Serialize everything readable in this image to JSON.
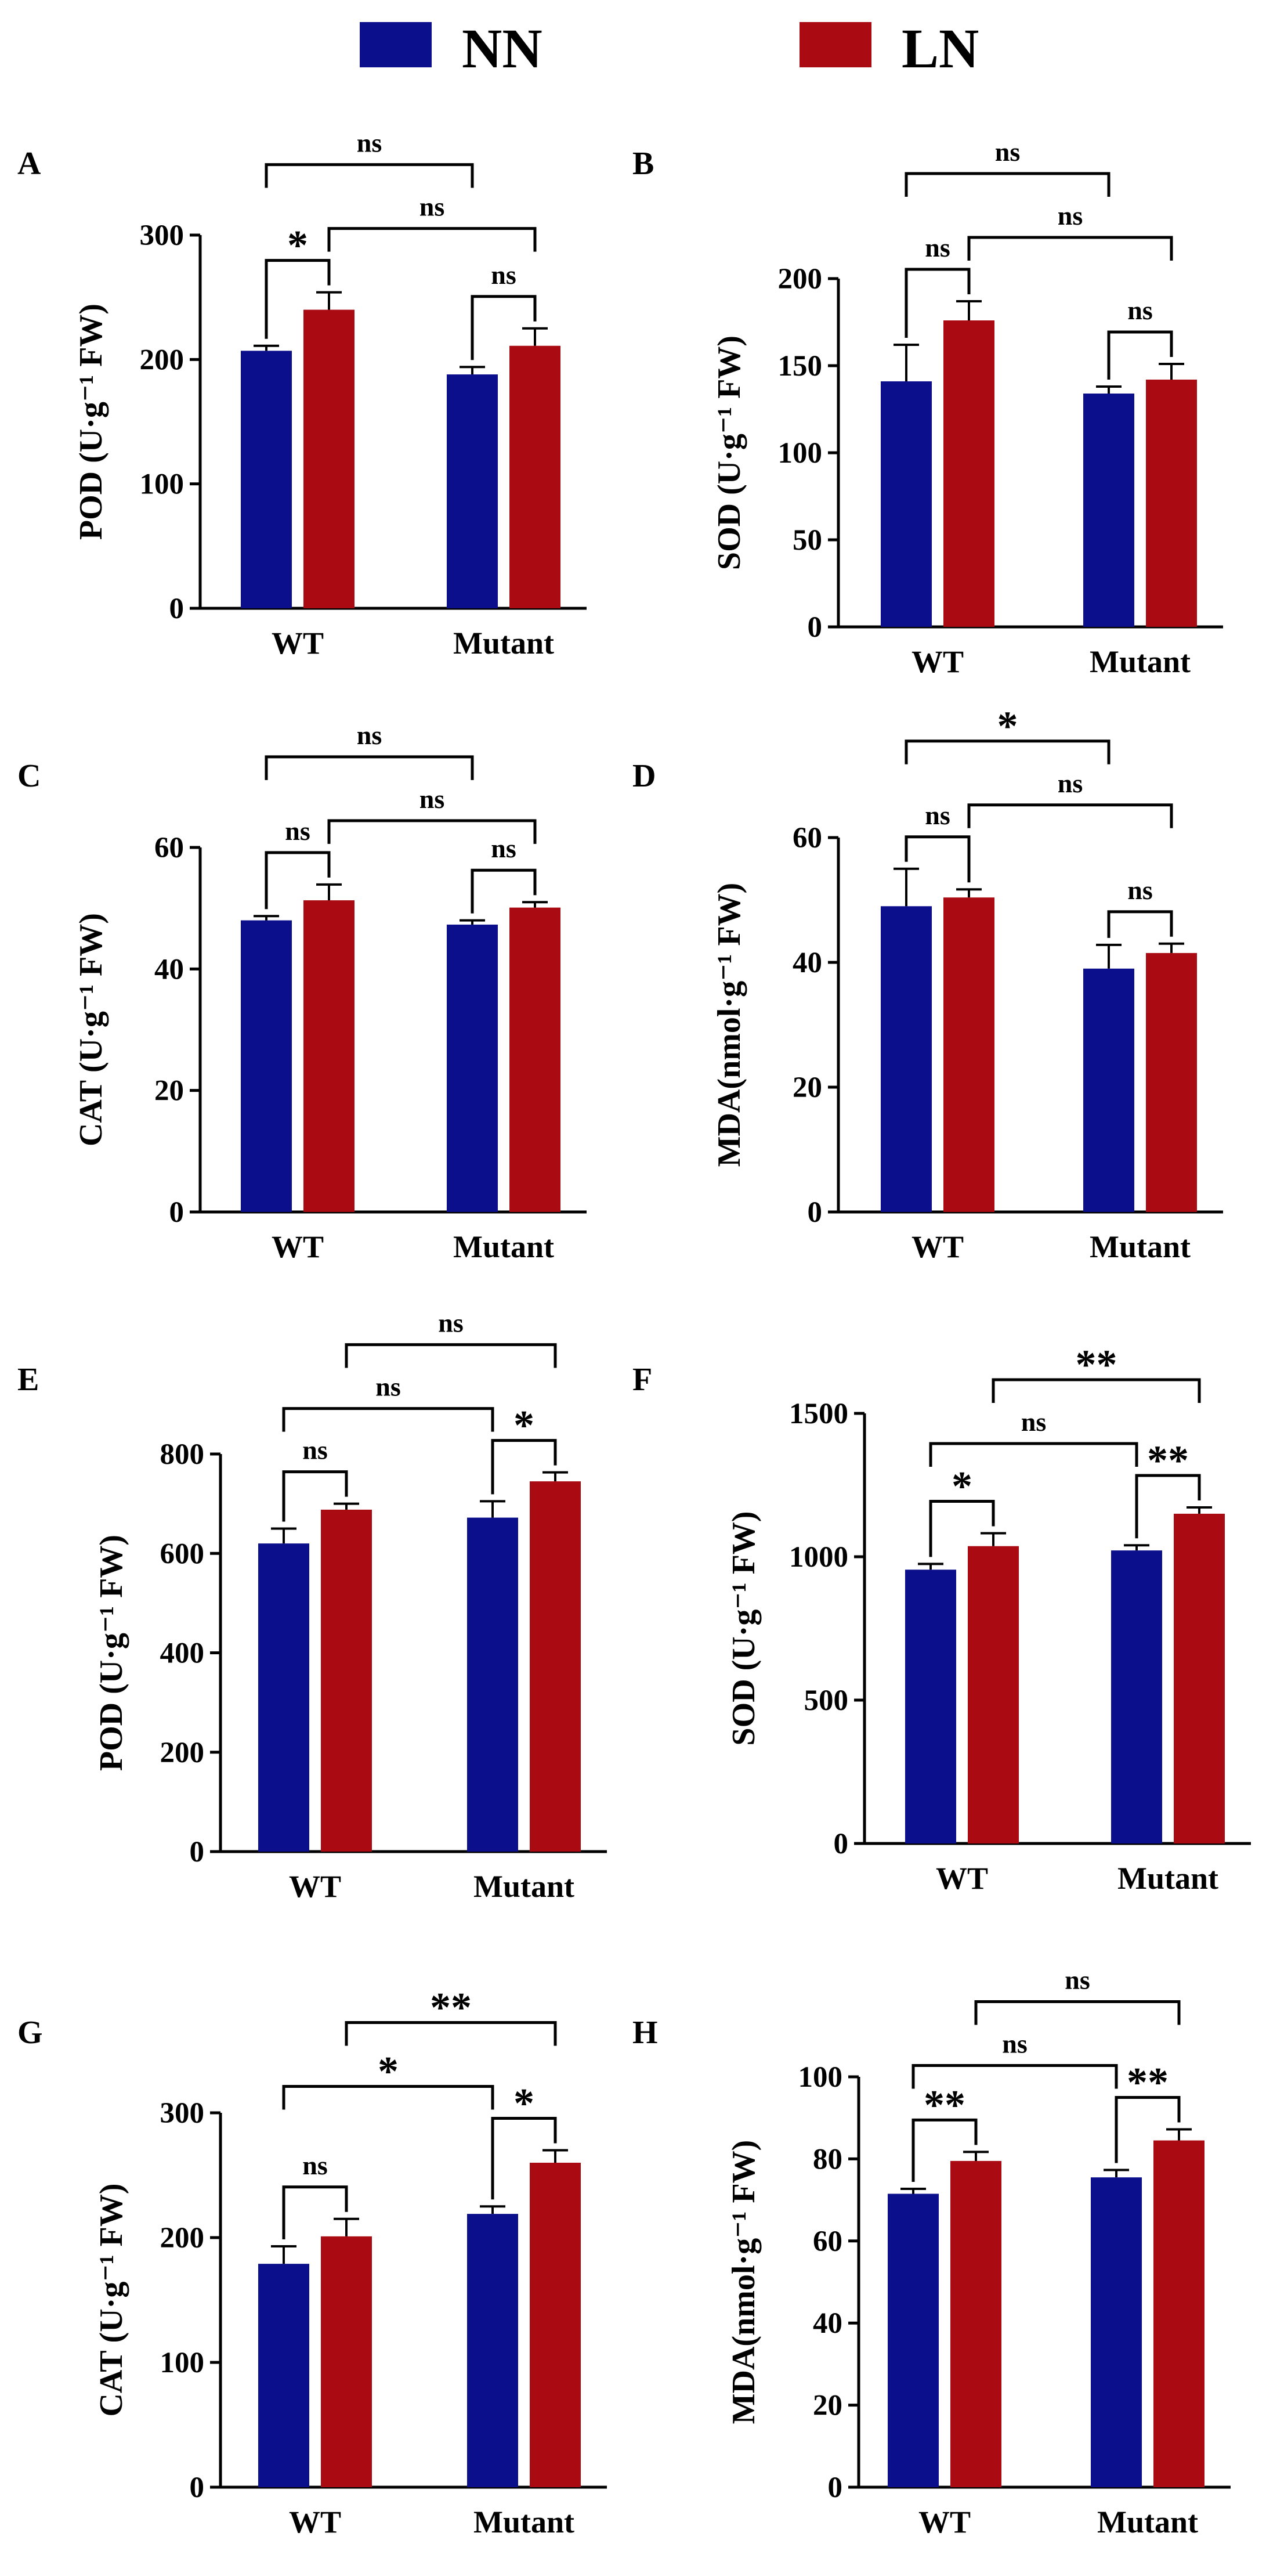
{
  "legend": [
    {
      "name": "NN",
      "color": "#0b0f8c"
    },
    {
      "name": "LN",
      "color": "#aa0b12"
    }
  ],
  "chart_data": [
    {
      "panel": "A",
      "type": "bar",
      "ylabel": "POD (U·g⁻¹ FW)",
      "ylim": [
        0,
        300
      ],
      "yticks": [
        "0",
        "100",
        "200",
        "300"
      ],
      "categories": [
        "WT",
        "Mutant"
      ],
      "series": [
        {
          "name": "NN",
          "values": [
            207,
            188
          ],
          "errors": [
            4,
            6
          ]
        },
        {
          "name": "LN",
          "values": [
            240,
            211
          ],
          "errors": [
            14,
            14
          ]
        }
      ],
      "significance": [
        {
          "pair": "WT NN vs WT LN",
          "label": "*"
        },
        {
          "pair": "Mutant NN vs Mutant LN",
          "label": "ns"
        },
        {
          "pair": "WT LN vs Mutant LN",
          "label": "ns"
        },
        {
          "pair": "WT NN vs Mutant NN",
          "label": "ns"
        }
      ]
    },
    {
      "panel": "B",
      "type": "bar",
      "ylabel": "SOD (U·g⁻¹ FW)",
      "ylim": [
        0,
        200
      ],
      "yticks": [
        "0",
        "50",
        "100",
        "150",
        "200"
      ],
      "categories": [
        "WT",
        "Mutant"
      ],
      "series": [
        {
          "name": "NN",
          "values": [
            141,
            134
          ],
          "errors": [
            21,
            4
          ]
        },
        {
          "name": "LN",
          "values": [
            176,
            142
          ],
          "errors": [
            11,
            9
          ]
        }
      ],
      "significance": [
        {
          "pair": "WT NN vs WT LN",
          "label": "ns"
        },
        {
          "pair": "Mutant NN vs Mutant LN",
          "label": "ns"
        },
        {
          "pair": "WT LN vs Mutant LN",
          "label": "ns"
        },
        {
          "pair": "WT NN vs Mutant NN",
          "label": "ns"
        }
      ]
    },
    {
      "panel": "C",
      "type": "bar",
      "ylabel": "CAT (U·g⁻¹ FW)",
      "ylim": [
        0,
        60
      ],
      "yticks": [
        "0",
        "20",
        "40",
        "60"
      ],
      "categories": [
        "WT",
        "Mutant"
      ],
      "series": [
        {
          "name": "NN",
          "values": [
            48,
            47.3
          ],
          "errors": [
            0.7,
            0.7
          ]
        },
        {
          "name": "LN",
          "values": [
            51.3,
            50.1
          ],
          "errors": [
            2.6,
            0.9
          ]
        }
      ],
      "significance": [
        {
          "pair": "WT NN vs WT LN",
          "label": "ns"
        },
        {
          "pair": "Mutant NN vs Mutant LN",
          "label": "ns"
        },
        {
          "pair": "WT LN vs Mutant LN",
          "label": "ns"
        },
        {
          "pair": "WT NN vs Mutant NN",
          "label": "ns"
        }
      ]
    },
    {
      "panel": "D",
      "type": "bar",
      "ylabel": "MDA(nmol·g⁻¹ FW)",
      "ylim": [
        0,
        60
      ],
      "yticks": [
        "0",
        "20",
        "40",
        "60"
      ],
      "categories": [
        "WT",
        "Mutant"
      ],
      "series": [
        {
          "name": "NN",
          "values": [
            49,
            39
          ],
          "errors": [
            6,
            3.8
          ]
        },
        {
          "name": "LN",
          "values": [
            50.4,
            41.5
          ],
          "errors": [
            1.3,
            1.5
          ]
        }
      ],
      "significance": [
        {
          "pair": "WT NN vs WT LN",
          "label": "ns"
        },
        {
          "pair": "Mutant NN vs Mutant LN",
          "label": "ns"
        },
        {
          "pair": "WT LN vs Mutant LN",
          "label": "ns"
        },
        {
          "pair": "WT NN vs Mutant NN",
          "label": "*"
        }
      ]
    },
    {
      "panel": "E",
      "type": "bar",
      "ylabel": "POD (U·g⁻¹ FW)",
      "ylim": [
        0,
        800
      ],
      "yticks": [
        "0",
        "200",
        "400",
        "600",
        "800"
      ],
      "categories": [
        "WT",
        "Mutant"
      ],
      "series": [
        {
          "name": "NN",
          "values": [
            620,
            672
          ],
          "errors": [
            30,
            33
          ]
        },
        {
          "name": "LN",
          "values": [
            688,
            745
          ],
          "errors": [
            12,
            18
          ]
        }
      ],
      "significance": [
        {
          "pair": "WT NN vs WT LN",
          "label": "ns"
        },
        {
          "pair": "Mutant NN vs Mutant LN",
          "label": "*"
        },
        {
          "pair": "WT NN vs Mutant NN",
          "label": "ns"
        },
        {
          "pair": "WT LN vs Mutant LN",
          "label": "ns"
        }
      ]
    },
    {
      "panel": "F",
      "type": "bar",
      "ylabel": "SOD (U·g⁻¹ FW)",
      "ylim": [
        0,
        1500
      ],
      "yticks": [
        "0",
        "500",
        "1000",
        "1500"
      ],
      "categories": [
        "WT",
        "Mutant"
      ],
      "series": [
        {
          "name": "NN",
          "values": [
            955,
            1022
          ],
          "errors": [
            20,
            18
          ]
        },
        {
          "name": "LN",
          "values": [
            1037,
            1150
          ],
          "errors": [
            45,
            22
          ]
        }
      ],
      "significance": [
        {
          "pair": "WT NN vs WT LN",
          "label": "*"
        },
        {
          "pair": "Mutant NN vs Mutant LN",
          "label": "**"
        },
        {
          "pair": "WT NN vs Mutant NN",
          "label": "ns"
        },
        {
          "pair": "WT LN vs Mutant LN",
          "label": "**"
        }
      ]
    },
    {
      "panel": "G",
      "type": "bar",
      "ylabel": "CAT (U·g⁻¹ FW)",
      "ylim": [
        0,
        300
      ],
      "yticks": [
        "0",
        "100",
        "200",
        "300"
      ],
      "categories": [
        "WT",
        "Mutant"
      ],
      "series": [
        {
          "name": "NN",
          "values": [
            179,
            219
          ],
          "errors": [
            14,
            6
          ]
        },
        {
          "name": "LN",
          "values": [
            201,
            260
          ],
          "errors": [
            14,
            10
          ]
        }
      ],
      "significance": [
        {
          "pair": "WT NN vs WT LN",
          "label": "ns"
        },
        {
          "pair": "Mutant NN vs Mutant LN",
          "label": "*"
        },
        {
          "pair": "WT NN vs Mutant NN",
          "label": "*"
        },
        {
          "pair": "WT LN vs Mutant LN",
          "label": "**"
        }
      ]
    },
    {
      "panel": "H",
      "type": "bar",
      "ylabel": "MDA(nmol·g⁻¹ FW)",
      "ylim": [
        0,
        100
      ],
      "yticks": [
        "0",
        "20",
        "40",
        "60",
        "80",
        "100"
      ],
      "categories": [
        "WT",
        "Mutant"
      ],
      "series": [
        {
          "name": "NN",
          "values": [
            71.5,
            75.5
          ],
          "errors": [
            1.2,
            1.8
          ]
        },
        {
          "name": "LN",
          "values": [
            79.5,
            84.5
          ],
          "errors": [
            2.2,
            2.7
          ]
        }
      ],
      "significance": [
        {
          "pair": "WT NN vs WT LN",
          "label": "**"
        },
        {
          "pair": "Mutant NN vs Mutant LN",
          "label": "**"
        },
        {
          "pair": "WT NN vs Mutant NN",
          "label": "ns"
        },
        {
          "pair": "WT LN vs Mutant LN",
          "label": "ns"
        }
      ]
    }
  ]
}
